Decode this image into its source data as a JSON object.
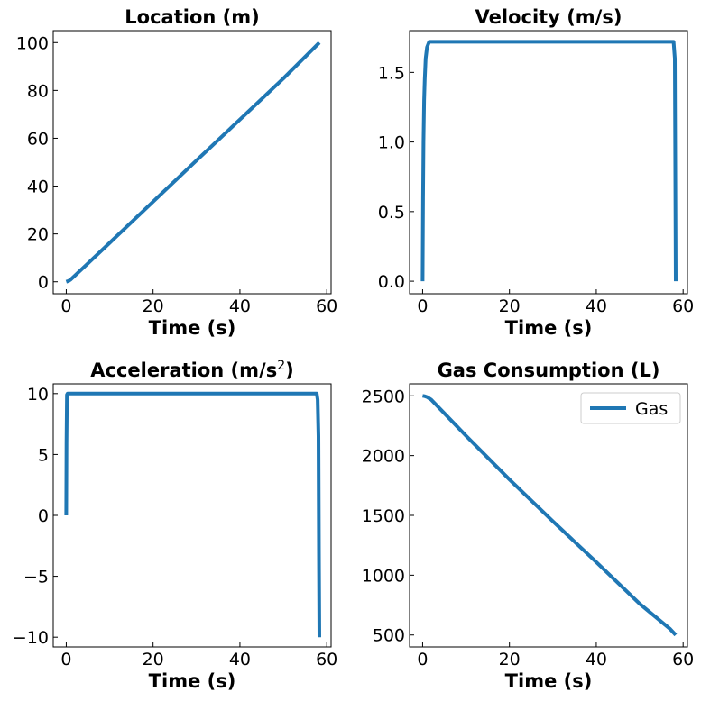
{
  "colors": {
    "series": "#1f77b4"
  },
  "chart_data": [
    {
      "type": "line",
      "title": "Location (m)",
      "xlabel": "Time (s)",
      "ylabel": "",
      "xlim": [
        -3,
        61
      ],
      "ylim": [
        -5,
        105
      ],
      "xticks": [
        0,
        20,
        40,
        60
      ],
      "xtick_labels": [
        "0",
        "20",
        "40",
        "60"
      ],
      "yticks": [
        0,
        20,
        40,
        60,
        80,
        100
      ],
      "ytick_labels": [
        "0",
        "20",
        "40",
        "60",
        "80",
        "100"
      ],
      "series": [
        {
          "x": [
            0,
            0.5,
            1,
            2,
            5,
            10,
            20,
            30,
            40,
            50,
            58.3
          ],
          "y": [
            0,
            0.3,
            0.9,
            2.6,
            7.7,
            16.3,
            33.5,
            50.7,
            67.8,
            85.0,
            100
          ]
        }
      ],
      "grid": false
    },
    {
      "type": "line",
      "title": "Velocity (m/s)",
      "xlabel": "Time (s)",
      "ylabel": "",
      "xlim": [
        -3,
        61
      ],
      "ylim": [
        -0.09,
        1.8
      ],
      "xticks": [
        0,
        20,
        40,
        60
      ],
      "xtick_labels": [
        "0",
        "20",
        "40",
        "60"
      ],
      "yticks": [
        0,
        0.5,
        1.0,
        1.5
      ],
      "ytick_labels": [
        "0.0",
        "0.5",
        "1.0",
        "1.5"
      ],
      "series": [
        {
          "x": [
            0,
            0.1,
            0.2,
            0.35,
            0.5,
            0.7,
            1.0,
            1.5,
            2,
            5,
            30,
            57.8,
            58.1,
            58.2,
            58.3
          ],
          "y": [
            0,
            0.6,
            1.0,
            1.3,
            1.45,
            1.6,
            1.68,
            1.72,
            1.72,
            1.72,
            1.72,
            1.72,
            1.6,
            0.8,
            0
          ]
        }
      ],
      "grid": false
    },
    {
      "type": "line",
      "title": "Acceleration (m/s²)",
      "title_main": "Acceleration (m/s",
      "title_sup": "2",
      "title_end": ")",
      "xlabel": "Time (s)",
      "ylabel": "",
      "xlim": [
        -3,
        61
      ],
      "ylim": [
        -10.8,
        10.8
      ],
      "xticks": [
        0,
        20,
        40,
        60
      ],
      "xtick_labels": [
        "0",
        "20",
        "40",
        "60"
      ],
      "yticks": [
        -10,
        -5,
        0,
        5,
        10
      ],
      "ytick_labels": [
        "−10",
        "−5",
        "0",
        "5",
        "10"
      ],
      "series": [
        {
          "x": [
            0,
            0.05,
            0.15,
            0.3,
            1,
            10,
            30,
            50,
            57.7,
            57.9,
            58.1,
            58.2,
            58.3
          ],
          "y": [
            0,
            6,
            9.9,
            10,
            10,
            10,
            10,
            10,
            10,
            9.5,
            6.5,
            -3,
            -10
          ]
        }
      ],
      "grid": false
    },
    {
      "type": "line",
      "title": "Gas Consumption (L)",
      "xlabel": "Time (s)",
      "ylabel": "",
      "xlim": [
        -3,
        61
      ],
      "ylim": [
        400,
        2600
      ],
      "xticks": [
        0,
        20,
        40,
        60
      ],
      "xtick_labels": [
        "0",
        "20",
        "40",
        "60"
      ],
      "yticks": [
        500,
        1000,
        1500,
        2000,
        2500
      ],
      "ytick_labels": [
        "500",
        "1000",
        "1500",
        "2000",
        "2500"
      ],
      "series": [
        {
          "name": "Gas",
          "x": [
            0,
            0.5,
            1,
            2,
            10,
            20,
            30,
            40,
            50,
            57,
            58.3
          ],
          "y": [
            2500,
            2497,
            2490,
            2467,
            2165,
            1800,
            1450,
            1110,
            760,
            550,
            500
          ]
        }
      ],
      "legend": {
        "position": "top-right",
        "labels": [
          "Gas"
        ]
      },
      "grid": false
    }
  ]
}
